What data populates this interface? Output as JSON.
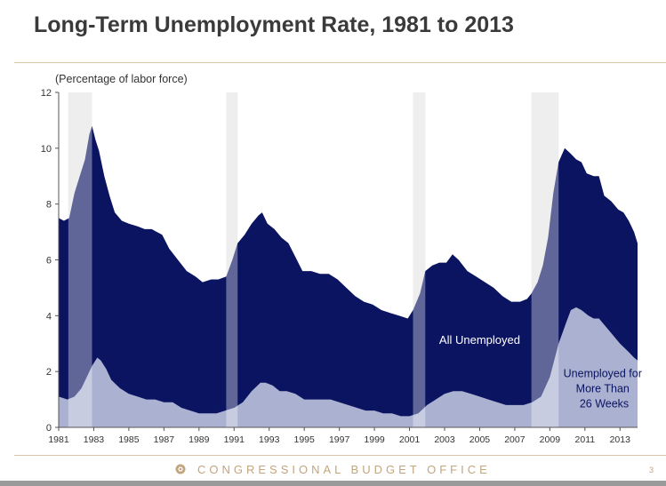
{
  "title": "Long-Term Unemployment Rate, 1981 to 2013",
  "footer": {
    "org": "CONGRESSIONAL BUDGET OFFICE",
    "page_number": "3"
  },
  "colors": {
    "all_unemployed": "#0b1461",
    "long_term": "#aab1d1",
    "recession_band": "#e5e5e5",
    "recession_overlay": "#ffffff",
    "all_label": "#ffffff",
    "long_term_label": "#0b1461"
  },
  "chart_data": {
    "type": "area",
    "ylabel": "(Percentage of labor force)",
    "xlim": [
      1981,
      2014
    ],
    "ylim": [
      0,
      12
    ],
    "yticks": [
      0,
      2,
      4,
      6,
      8,
      10,
      12
    ],
    "xticks": [
      "1981",
      "1983",
      "1985",
      "1987",
      "1989",
      "1991",
      "1993",
      "1995",
      "1997",
      "1999",
      "2001",
      "2003",
      "2005",
      "2007",
      "2009",
      "2011",
      "2013"
    ],
    "recessions": [
      [
        1981.55,
        1982.9
      ],
      [
        1990.55,
        1991.2
      ],
      [
        2001.2,
        2001.9
      ],
      [
        2007.95,
        2009.5
      ]
    ],
    "series": [
      {
        "name": "All Unemployed",
        "label_position_year": 2005,
        "label_position_value": 3.0,
        "points": [
          [
            1981.0,
            7.5
          ],
          [
            1981.3,
            7.4
          ],
          [
            1981.6,
            7.5
          ],
          [
            1981.9,
            8.4
          ],
          [
            1982.2,
            9.0
          ],
          [
            1982.5,
            9.6
          ],
          [
            1982.75,
            10.5
          ],
          [
            1982.9,
            10.8
          ],
          [
            1983.1,
            10.3
          ],
          [
            1983.3,
            9.9
          ],
          [
            1983.6,
            9.0
          ],
          [
            1983.9,
            8.3
          ],
          [
            1984.2,
            7.7
          ],
          [
            1984.6,
            7.4
          ],
          [
            1985.0,
            7.3
          ],
          [
            1985.5,
            7.2
          ],
          [
            1985.9,
            7.1
          ],
          [
            1986.3,
            7.1
          ],
          [
            1986.6,
            7.0
          ],
          [
            1986.9,
            6.9
          ],
          [
            1987.3,
            6.4
          ],
          [
            1987.8,
            6.0
          ],
          [
            1988.3,
            5.6
          ],
          [
            1988.8,
            5.4
          ],
          [
            1989.2,
            5.2
          ],
          [
            1989.7,
            5.3
          ],
          [
            1990.1,
            5.3
          ],
          [
            1990.55,
            5.4
          ],
          [
            1990.9,
            6.0
          ],
          [
            1991.2,
            6.6
          ],
          [
            1991.6,
            6.9
          ],
          [
            1992.0,
            7.3
          ],
          [
            1992.4,
            7.6
          ],
          [
            1992.6,
            7.7
          ],
          [
            1992.9,
            7.3
          ],
          [
            1993.3,
            7.1
          ],
          [
            1993.7,
            6.8
          ],
          [
            1994.1,
            6.6
          ],
          [
            1994.5,
            6.1
          ],
          [
            1994.9,
            5.6
          ],
          [
            1995.4,
            5.6
          ],
          [
            1995.9,
            5.5
          ],
          [
            1996.4,
            5.5
          ],
          [
            1996.9,
            5.3
          ],
          [
            1997.4,
            5.0
          ],
          [
            1997.9,
            4.7
          ],
          [
            1998.4,
            4.5
          ],
          [
            1998.9,
            4.4
          ],
          [
            1999.4,
            4.2
          ],
          [
            1999.9,
            4.1
          ],
          [
            2000.4,
            4.0
          ],
          [
            2000.9,
            3.9
          ],
          [
            2001.2,
            4.2
          ],
          [
            2001.6,
            4.8
          ],
          [
            2001.9,
            5.6
          ],
          [
            2002.3,
            5.8
          ],
          [
            2002.7,
            5.9
          ],
          [
            2003.1,
            5.9
          ],
          [
            2003.45,
            6.2
          ],
          [
            2003.8,
            6.0
          ],
          [
            2004.3,
            5.6
          ],
          [
            2004.8,
            5.4
          ],
          [
            2005.3,
            5.2
          ],
          [
            2005.8,
            5.0
          ],
          [
            2006.3,
            4.7
          ],
          [
            2006.8,
            4.5
          ],
          [
            2007.3,
            4.5
          ],
          [
            2007.7,
            4.6
          ],
          [
            2007.95,
            4.8
          ],
          [
            2008.3,
            5.2
          ],
          [
            2008.6,
            5.8
          ],
          [
            2008.9,
            6.8
          ],
          [
            2009.2,
            8.4
          ],
          [
            2009.5,
            9.5
          ],
          [
            2009.85,
            10.0
          ],
          [
            2010.2,
            9.8
          ],
          [
            2010.5,
            9.6
          ],
          [
            2010.8,
            9.5
          ],
          [
            2011.1,
            9.1
          ],
          [
            2011.5,
            9.0
          ],
          [
            2011.8,
            9.0
          ],
          [
            2012.1,
            8.3
          ],
          [
            2012.5,
            8.1
          ],
          [
            2012.9,
            7.8
          ],
          [
            2013.2,
            7.7
          ],
          [
            2013.5,
            7.4
          ],
          [
            2013.8,
            7.0
          ],
          [
            2014.0,
            6.6
          ]
        ]
      },
      {
        "name": "Unemployed for More Than 26 Weeks",
        "label_lines": [
          "Unemployed for",
          "More Than",
          "26 Weeks"
        ],
        "label_position_year": 2012.1,
        "label_position_value": 1.8,
        "points": [
          [
            1981.0,
            1.1
          ],
          [
            1981.5,
            1.0
          ],
          [
            1981.9,
            1.1
          ],
          [
            1982.3,
            1.4
          ],
          [
            1982.6,
            1.8
          ],
          [
            1982.9,
            2.2
          ],
          [
            1983.2,
            2.5
          ],
          [
            1983.4,
            2.4
          ],
          [
            1983.7,
            2.1
          ],
          [
            1984.0,
            1.7
          ],
          [
            1984.5,
            1.4
          ],
          [
            1985.0,
            1.2
          ],
          [
            1985.5,
            1.1
          ],
          [
            1986.0,
            1.0
          ],
          [
            1986.5,
            1.0
          ],
          [
            1987.0,
            0.9
          ],
          [
            1987.5,
            0.9
          ],
          [
            1988.0,
            0.7
          ],
          [
            1988.5,
            0.6
          ],
          [
            1989.0,
            0.5
          ],
          [
            1989.5,
            0.5
          ],
          [
            1990.0,
            0.5
          ],
          [
            1990.5,
            0.6
          ],
          [
            1991.0,
            0.7
          ],
          [
            1991.5,
            0.9
          ],
          [
            1992.0,
            1.3
          ],
          [
            1992.5,
            1.6
          ],
          [
            1992.8,
            1.6
          ],
          [
            1993.2,
            1.5
          ],
          [
            1993.6,
            1.3
          ],
          [
            1994.0,
            1.3
          ],
          [
            1994.5,
            1.2
          ],
          [
            1995.0,
            1.0
          ],
          [
            1995.5,
            1.0
          ],
          [
            1996.0,
            1.0
          ],
          [
            1996.5,
            1.0
          ],
          [
            1997.0,
            0.9
          ],
          [
            1997.5,
            0.8
          ],
          [
            1998.0,
            0.7
          ],
          [
            1998.5,
            0.6
          ],
          [
            1999.0,
            0.6
          ],
          [
            1999.5,
            0.5
          ],
          [
            2000.0,
            0.5
          ],
          [
            2000.5,
            0.4
          ],
          [
            2001.0,
            0.4
          ],
          [
            2001.5,
            0.5
          ],
          [
            2002.0,
            0.8
          ],
          [
            2002.5,
            1.0
          ],
          [
            2003.0,
            1.2
          ],
          [
            2003.5,
            1.3
          ],
          [
            2004.0,
            1.3
          ],
          [
            2004.5,
            1.2
          ],
          [
            2005.0,
            1.1
          ],
          [
            2005.5,
            1.0
          ],
          [
            2006.0,
            0.9
          ],
          [
            2006.5,
            0.8
          ],
          [
            2007.0,
            0.8
          ],
          [
            2007.5,
            0.8
          ],
          [
            2008.0,
            0.9
          ],
          [
            2008.5,
            1.1
          ],
          [
            2009.0,
            1.8
          ],
          [
            2009.5,
            3.0
          ],
          [
            2009.9,
            3.7
          ],
          [
            2010.2,
            4.2
          ],
          [
            2010.5,
            4.3
          ],
          [
            2010.8,
            4.2
          ],
          [
            2011.2,
            4.0
          ],
          [
            2011.5,
            3.9
          ],
          [
            2011.8,
            3.9
          ],
          [
            2012.2,
            3.6
          ],
          [
            2012.6,
            3.3
          ],
          [
            2013.0,
            3.0
          ],
          [
            2013.5,
            2.7
          ],
          [
            2013.8,
            2.5
          ],
          [
            2014.0,
            2.4
          ]
        ]
      }
    ]
  }
}
